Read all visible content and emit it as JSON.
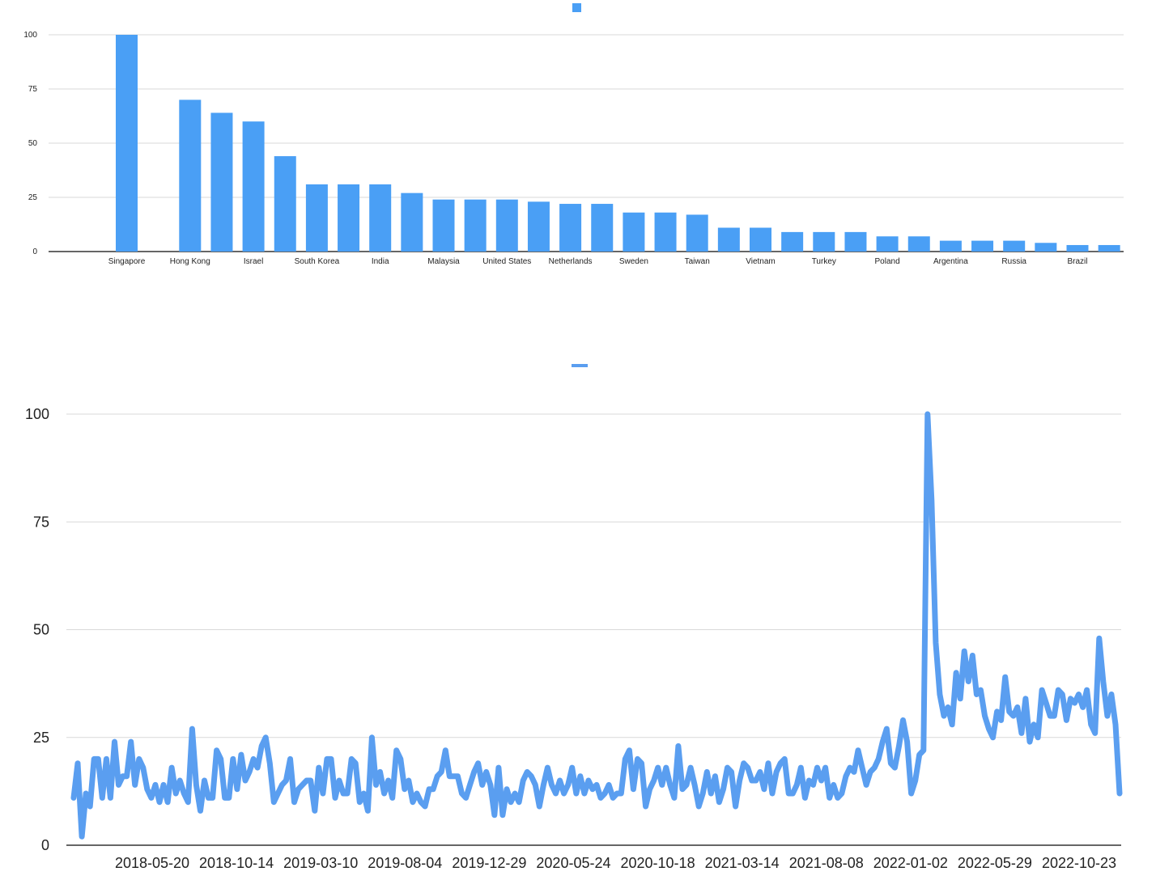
{
  "colors": {
    "series": "#4a9ff5",
    "line": "#5a9ef0",
    "grid": "#d9d9d9",
    "axis": "#333333"
  },
  "chart_data": [
    {
      "type": "bar",
      "title": "",
      "legend": {
        "position": "top",
        "entries": [
          ""
        ]
      },
      "ylim": [
        0,
        100
      ],
      "yticks": [
        "0",
        "25",
        "50",
        "75",
        "100"
      ],
      "categories": [
        "Singapore",
        "",
        "Hong Kong",
        "",
        "Israel",
        "",
        "South Korea",
        "",
        "India",
        "",
        "Malaysia",
        "",
        "United States",
        "",
        "Netherlands",
        "",
        "Sweden",
        "",
        "Taiwan",
        "",
        "Vietnam",
        "",
        "Turkey",
        "",
        "Poland",
        "",
        "Argentina",
        "",
        "Russia",
        "",
        "Brazil",
        ""
      ],
      "values": [
        100,
        0,
        70,
        64,
        60,
        44,
        31,
        31,
        31,
        27,
        24,
        24,
        24,
        23,
        22,
        22,
        18,
        18,
        17,
        11,
        11,
        9,
        9,
        9,
        7,
        7,
        5,
        5,
        5,
        4,
        3,
        3
      ],
      "grid": true
    },
    {
      "type": "line",
      "title": "",
      "legend": {
        "position": "top",
        "entries": [
          ""
        ]
      },
      "ylim": [
        0,
        100
      ],
      "yticks": [
        "0",
        "25",
        "50",
        "75",
        "100"
      ],
      "xstart": "2018-01-07",
      "xticks": [
        "2018-05-20",
        "2018-10-14",
        "2019-03-10",
        "2019-08-04",
        "2019-12-29",
        "2020-05-24",
        "2020-10-18",
        "2021-03-14",
        "2021-08-08",
        "2022-01-02",
        "2022-05-29",
        "2022-10-23"
      ],
      "values": [
        11,
        19,
        2,
        12,
        9,
        20,
        20,
        11,
        20,
        11,
        24,
        14,
        16,
        16,
        24,
        14,
        20,
        18,
        13,
        11,
        14,
        10,
        14,
        10,
        18,
        12,
        15,
        12,
        10,
        27,
        14,
        8,
        15,
        11,
        11,
        22,
        20,
        11,
        11,
        20,
        13,
        21,
        15,
        17,
        20,
        18,
        23,
        25,
        19,
        10,
        12,
        14,
        15,
        20,
        10,
        13,
        14,
        15,
        15,
        8,
        18,
        12,
        20,
        20,
        11,
        15,
        12,
        12,
        20,
        19,
        10,
        12,
        8,
        25,
        14,
        17,
        12,
        15,
        11,
        22,
        20,
        13,
        15,
        10,
        12,
        10,
        9,
        13,
        13,
        16,
        17,
        22,
        16,
        16,
        16,
        12,
        11,
        14,
        17,
        19,
        14,
        17,
        14,
        7,
        18,
        7,
        13,
        10,
        12,
        10,
        15,
        17,
        16,
        14,
        9,
        14,
        18,
        14,
        12,
        15,
        12,
        14,
        18,
        12,
        16,
        12,
        15,
        13,
        14,
        11,
        12,
        14,
        11,
        12,
        12,
        20,
        22,
        13,
        20,
        19,
        9,
        13,
        15,
        18,
        14,
        18,
        14,
        11,
        23,
        13,
        14,
        18,
        14,
        9,
        12,
        17,
        12,
        16,
        10,
        13,
        18,
        17,
        9,
        15,
        19,
        18,
        15,
        15,
        17,
        13,
        19,
        12,
        17,
        19,
        20,
        12,
        12,
        14,
        18,
        11,
        15,
        14,
        18,
        15,
        18,
        11,
        14,
        11,
        12,
        16,
        18,
        17,
        22,
        18,
        14,
        17,
        18,
        20,
        24,
        27,
        19,
        18,
        23,
        29,
        24,
        12,
        15,
        21,
        22,
        100,
        80,
        47,
        35,
        30,
        32,
        28,
        40,
        34,
        45,
        38,
        44,
        35,
        36,
        30,
        27,
        25,
        31,
        29,
        39,
        31,
        30,
        32,
        26,
        34,
        24,
        28,
        25,
        36,
        33,
        30,
        30,
        36,
        35,
        29,
        34,
        33,
        35,
        32,
        36,
        28,
        26,
        48,
        38,
        30,
        35,
        28,
        12
      ]
    }
  ]
}
